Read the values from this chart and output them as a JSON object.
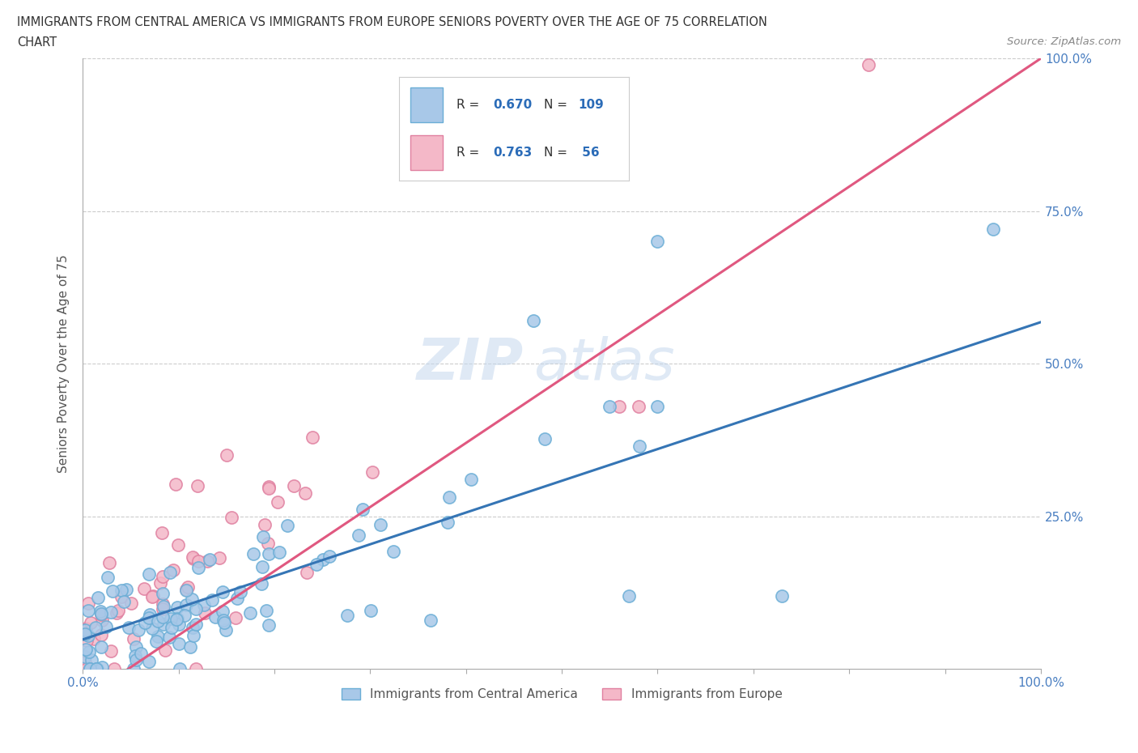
{
  "title_line1": "IMMIGRANTS FROM CENTRAL AMERICA VS IMMIGRANTS FROM EUROPE SENIORS POVERTY OVER THE AGE OF 75 CORRELATION",
  "title_line2": "CHART",
  "source_text": "Source: ZipAtlas.com",
  "ylabel": "Seniors Poverty Over the Age of 75",
  "blue_color": "#a8c8e8",
  "blue_edge_color": "#6baed6",
  "blue_line_color": "#3575b5",
  "pink_color": "#f4b8c8",
  "pink_edge_color": "#e080a0",
  "pink_line_color": "#e05880",
  "legend_R_blue": "0.670",
  "legend_N_blue": "109",
  "legend_R_pink": "0.763",
  "legend_N_pink": " 56",
  "legend_label_blue": "Immigrants from Central America",
  "legend_label_pink": "Immigrants from Europe",
  "watermark_zip": "ZIP",
  "watermark_atlas": "atlas",
  "seed": 1234
}
